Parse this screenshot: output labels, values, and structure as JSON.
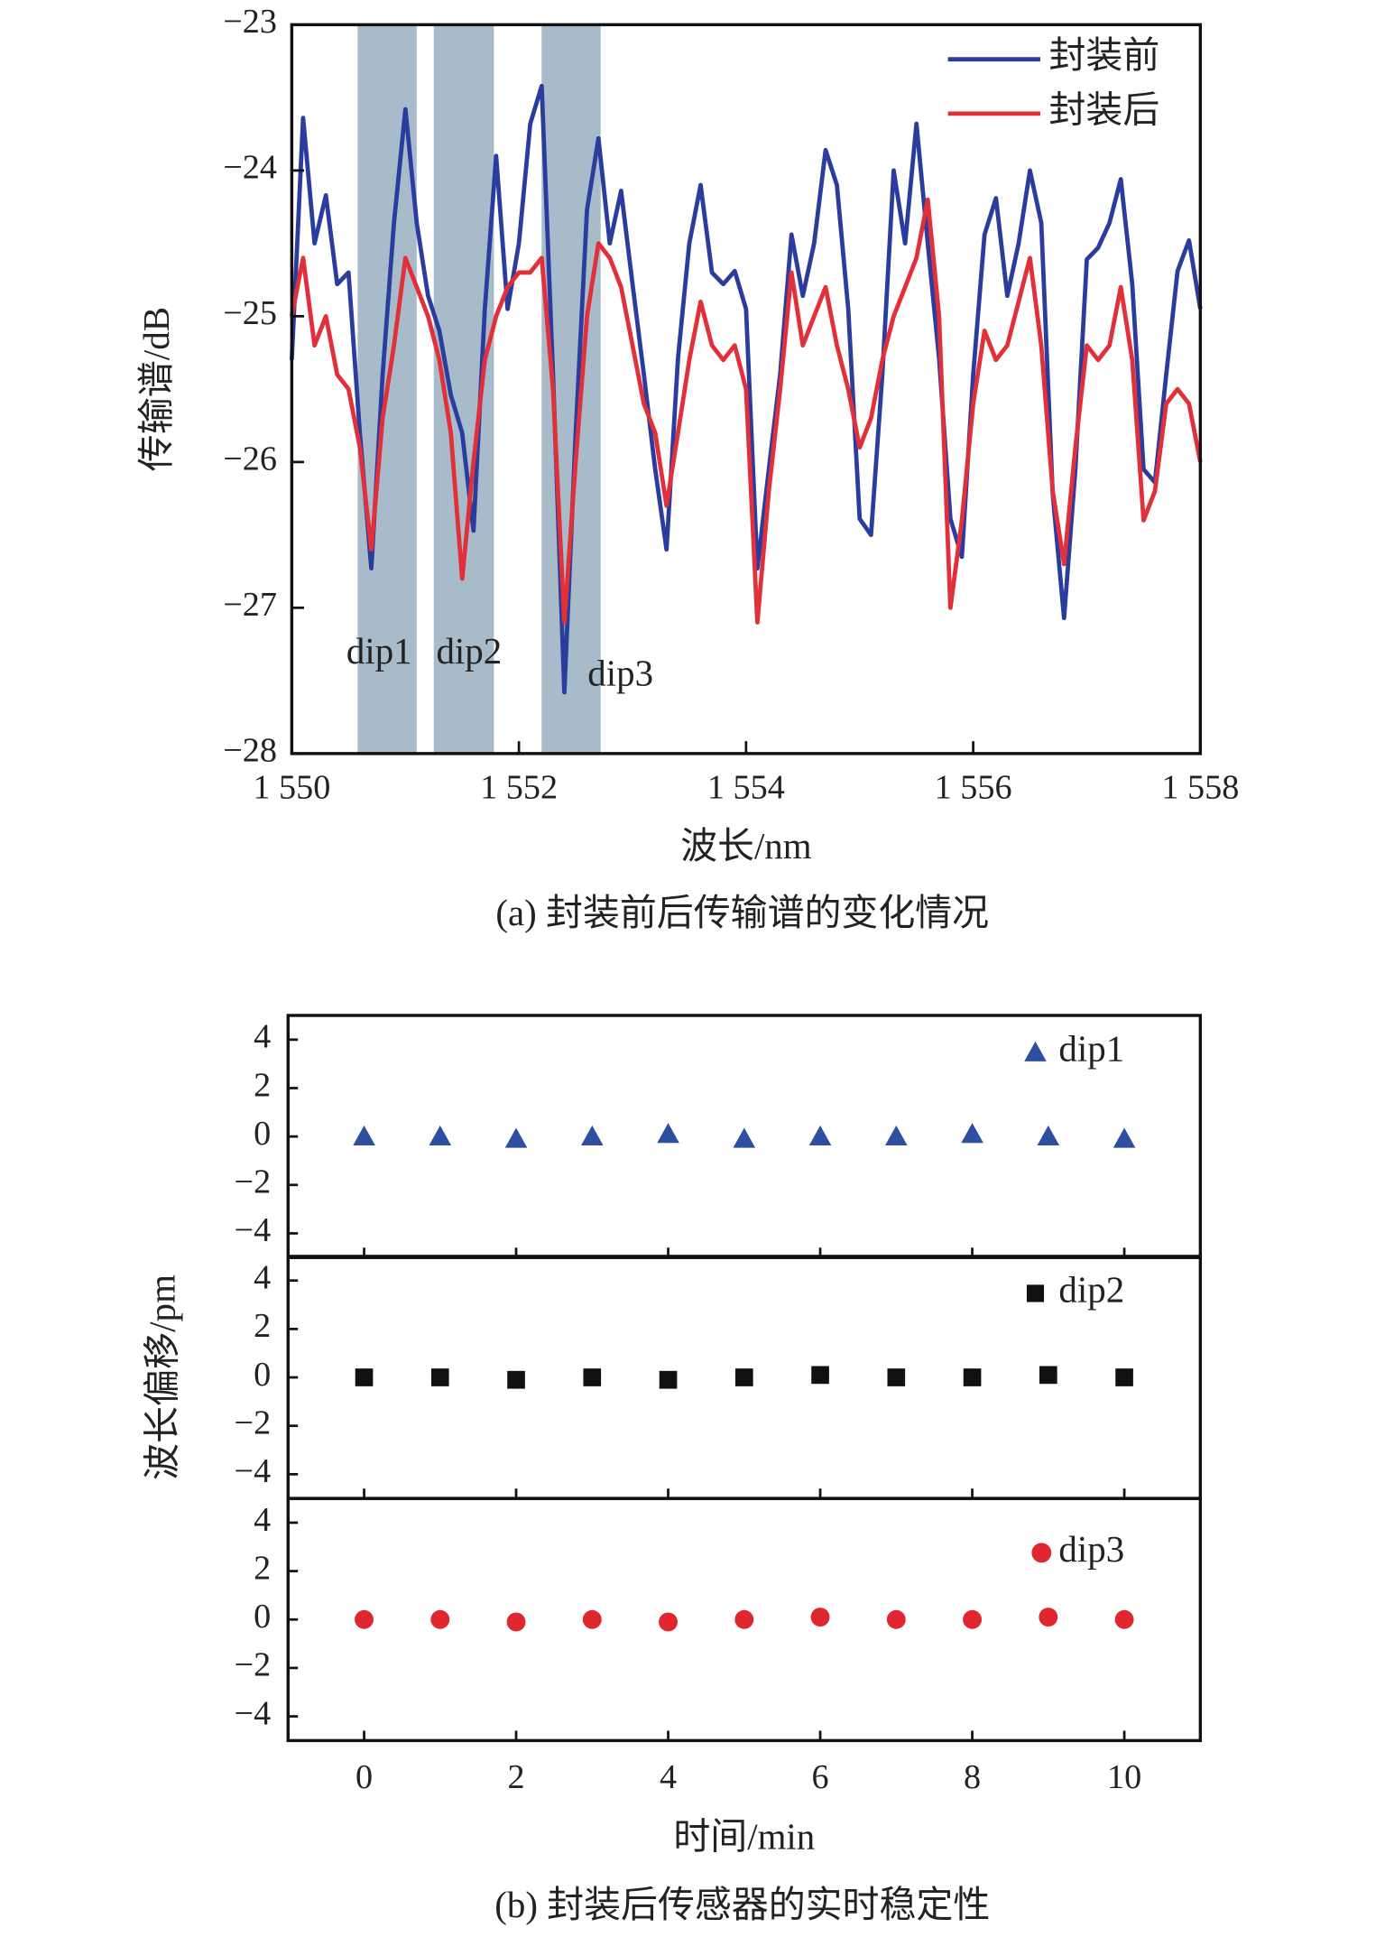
{
  "chart_data": [
    {
      "type": "line",
      "xlabel": "波长/nm",
      "ylabel": "传输谱/dB",
      "caption": "(a) 封装前后传输谱的变化情况",
      "xlim": [
        1550,
        1558
      ],
      "ylim": [
        -28,
        -23
      ],
      "xticks": [
        {
          "value": 1550,
          "label": "1 550"
        },
        {
          "value": 1552,
          "label": "1 552"
        },
        {
          "value": 1554,
          "label": "1 554"
        },
        {
          "value": 1556,
          "label": "1 556"
        },
        {
          "value": 1558,
          "label": "1 558"
        }
      ],
      "yticks": [
        {
          "value": -28,
          "label": "−28"
        },
        {
          "value": -27,
          "label": "−27"
        },
        {
          "value": -26,
          "label": "−26"
        },
        {
          "value": -25,
          "label": "−25"
        },
        {
          "value": -24,
          "label": "−24"
        },
        {
          "value": -23,
          "label": "−23"
        }
      ],
      "legend": "upper right",
      "highlights": [
        {
          "label": "dip1",
          "range": [
            1550.58,
            1551.1
          ],
          "color": "#a7bbca"
        },
        {
          "label": "dip2",
          "range": [
            1551.25,
            1551.78
          ],
          "color": "#a7bbca"
        },
        {
          "label": "dip3",
          "range": [
            1552.2,
            1552.72
          ],
          "color": "#a7bbca"
        }
      ],
      "x": [
        1550.0,
        1550.1,
        1550.2,
        1550.3,
        1550.4,
        1550.5,
        1550.6,
        1550.7,
        1550.8,
        1550.9,
        1551.0,
        1551.1,
        1551.2,
        1551.3,
        1551.4,
        1551.5,
        1551.6,
        1551.7,
        1551.8,
        1551.9,
        1552.0,
        1552.1,
        1552.2,
        1552.3,
        1552.4,
        1552.5,
        1552.6,
        1552.7,
        1552.8,
        1552.9,
        1553.0,
        1553.1,
        1553.2,
        1553.3,
        1553.4,
        1553.5,
        1553.6,
        1553.7,
        1553.8,
        1553.9,
        1554.0,
        1554.1,
        1554.2,
        1554.3,
        1554.4,
        1554.5,
        1554.6,
        1554.7,
        1554.8,
        1554.9,
        1555.0,
        1555.1,
        1555.2,
        1555.3,
        1555.4,
        1555.5,
        1555.6,
        1555.7,
        1555.8,
        1555.9,
        1556.0,
        1556.1,
        1556.2,
        1556.3,
        1556.4,
        1556.5,
        1556.6,
        1556.7,
        1556.8,
        1556.9,
        1557.0,
        1557.1,
        1557.2,
        1557.3,
        1557.4,
        1557.5,
        1557.6,
        1557.7,
        1557.8,
        1557.9,
        1558.0
      ],
      "series": [
        {
          "name": "封装前",
          "color": "#2a3d9e",
          "values": [
            -25.3,
            -23.64,
            -24.5,
            -24.17,
            -24.78,
            -24.7,
            -25.8,
            -26.73,
            -25.4,
            -24.36,
            -23.58,
            -24.36,
            -24.86,
            -25.1,
            -25.54,
            -25.8,
            -26.47,
            -24.95,
            -23.9,
            -24.95,
            -24.5,
            -23.68,
            -23.42,
            -25.4,
            -27.58,
            -25.8,
            -24.27,
            -23.78,
            -24.5,
            -24.14,
            -24.78,
            -25.4,
            -26.05,
            -26.6,
            -25.29,
            -24.5,
            -24.1,
            -24.7,
            -24.78,
            -24.69,
            -24.95,
            -26.73,
            -26.05,
            -25.4,
            -24.44,
            -24.86,
            -24.5,
            -23.86,
            -24.1,
            -24.95,
            -26.39,
            -26.5,
            -25.4,
            -24.0,
            -24.5,
            -23.68,
            -24.5,
            -25.29,
            -26.39,
            -26.65,
            -25.4,
            -24.44,
            -24.19,
            -24.86,
            -24.5,
            -24.0,
            -24.36,
            -26.22,
            -27.07,
            -26.05,
            -24.61,
            -24.53,
            -24.36,
            -24.06,
            -24.78,
            -26.05,
            -26.14,
            -25.4,
            -24.69,
            -24.48,
            -24.95
          ]
        },
        {
          "name": "封装后",
          "color": "#e2303a",
          "values": [
            -25.0,
            -24.6,
            -25.2,
            -25.0,
            -25.4,
            -25.5,
            -25.9,
            -26.6,
            -25.7,
            -25.2,
            -24.6,
            -24.8,
            -25.0,
            -25.3,
            -25.8,
            -26.8,
            -26.0,
            -25.3,
            -25.0,
            -24.8,
            -24.7,
            -24.7,
            -24.6,
            -25.5,
            -27.1,
            -26.0,
            -25.0,
            -24.5,
            -24.6,
            -24.8,
            -25.2,
            -25.6,
            -25.8,
            -26.3,
            -25.8,
            -25.3,
            -24.9,
            -25.2,
            -25.3,
            -25.2,
            -25.5,
            -27.1,
            -26.2,
            -25.5,
            -24.7,
            -25.2,
            -25.0,
            -24.8,
            -25.2,
            -25.5,
            -25.9,
            -25.7,
            -25.3,
            -25.0,
            -24.8,
            -24.6,
            -24.2,
            -25.0,
            -27.0,
            -26.4,
            -25.6,
            -25.1,
            -25.3,
            -25.2,
            -24.9,
            -24.6,
            -25.2,
            -26.2,
            -26.7,
            -25.9,
            -25.2,
            -25.3,
            -25.2,
            -24.8,
            -25.3,
            -26.4,
            -26.2,
            -25.6,
            -25.5,
            -25.6,
            -26.0
          ]
        }
      ]
    },
    {
      "type": "scatter",
      "xlabel": "时间/min",
      "ylabel": "波长偏移/pm",
      "caption": "(b) 封装后传感器的实时稳定性",
      "xlim": [
        -1,
        11
      ],
      "ylim": [
        -5,
        5
      ],
      "xticks": [
        0,
        2,
        4,
        6,
        8,
        10
      ],
      "yticks": [
        {
          "value": -4,
          "label": "−4"
        },
        {
          "value": -2,
          "label": "−2"
        },
        0,
        2,
        4
      ],
      "legend": "upper right",
      "x": [
        0,
        1,
        2,
        3,
        4,
        5,
        6,
        7,
        8,
        9,
        10
      ],
      "series": [
        {
          "name": "dip1",
          "color": "#2e4ea0",
          "marker": "triangle",
          "values": [
            0,
            0,
            -0.1,
            0,
            0.1,
            -0.1,
            0,
            0,
            0.1,
            0,
            -0.1
          ]
        },
        {
          "name": "dip2",
          "color": "#111111",
          "marker": "square",
          "values": [
            0,
            0,
            -0.1,
            0,
            -0.1,
            0,
            0.1,
            0,
            0,
            0.1,
            0
          ]
        },
        {
          "name": "dip3",
          "color": "#e0262e",
          "marker": "circle",
          "values": [
            0,
            0,
            -0.1,
            0,
            -0.1,
            0,
            0.1,
            0,
            0,
            0.1,
            0
          ]
        }
      ]
    }
  ]
}
